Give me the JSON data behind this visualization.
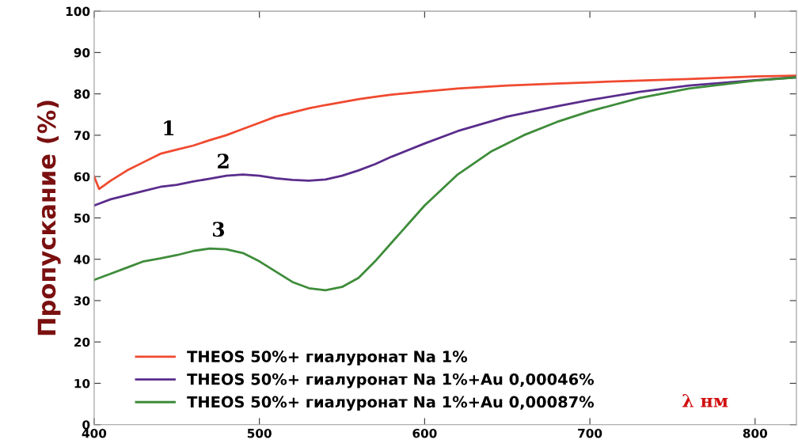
{
  "chart_data": {
    "type": "line",
    "xlabel": "λ нм",
    "ylabel": "Пропускание (%)",
    "xlim": [
      400,
      825
    ],
    "ylim": [
      0,
      100
    ],
    "xticks": [
      400,
      500,
      600,
      700,
      800
    ],
    "yticks": [
      0,
      10,
      20,
      30,
      40,
      50,
      60,
      70,
      80,
      90,
      100
    ],
    "grid": false,
    "legend": "bottom left",
    "marker": "none",
    "line_style": "solid",
    "annotations": [
      "1",
      "2",
      "3"
    ],
    "series": [
      {
        "name": "THEOS 50%+ гиалуронат Na 1%",
        "color": "#f04a30",
        "x": [
          400,
          403,
          410,
          420,
          430,
          440,
          450,
          460,
          470,
          480,
          490,
          500,
          510,
          520,
          530,
          540,
          550,
          560,
          570,
          580,
          600,
          620,
          650,
          680,
          700,
          730,
          760,
          800,
          825
        ],
        "values": [
          60,
          57,
          59,
          61.5,
          63.5,
          65.5,
          66.5,
          67.5,
          68.8,
          70,
          71.5,
          73,
          74.5,
          75.5,
          76.5,
          77.3,
          78,
          78.7,
          79.3,
          79.8,
          80.6,
          81.3,
          82,
          82.5,
          82.8,
          83.2,
          83.6,
          84.2,
          84.4
        ]
      },
      {
        "name": "THEOS 50%+ гиалуронат Na 1%+Au 0,00046%",
        "color": "#5a2d8c",
        "x": [
          400,
          410,
          420,
          430,
          440,
          450,
          460,
          470,
          480,
          490,
          500,
          510,
          520,
          530,
          540,
          550,
          560,
          570,
          580,
          600,
          620,
          650,
          680,
          700,
          730,
          760,
          800,
          825
        ],
        "values": [
          53,
          54.5,
          55.5,
          56.5,
          57.5,
          58,
          58.8,
          59.5,
          60.2,
          60.5,
          60.2,
          59.6,
          59.2,
          59,
          59.3,
          60.2,
          61.5,
          63,
          64.8,
          68,
          71,
          74.5,
          77,
          78.5,
          80.5,
          82,
          83.3,
          84
        ]
      },
      {
        "name": "THEOS 50%+ гиалуронат Na 1%+Au 0,00087%",
        "color": "#3e8c3a",
        "x": [
          400,
          410,
          420,
          430,
          440,
          450,
          460,
          470,
          480,
          490,
          500,
          510,
          520,
          530,
          540,
          550,
          560,
          570,
          580,
          590,
          600,
          620,
          640,
          660,
          680,
          700,
          730,
          760,
          800,
          825
        ],
        "values": [
          35,
          36.5,
          38,
          39.5,
          40.2,
          41,
          42,
          42.6,
          42.4,
          41.5,
          39.5,
          37,
          34.5,
          33,
          32.5,
          33.3,
          35.5,
          39.5,
          44,
          48.5,
          53,
          60.5,
          66,
          70,
          73.2,
          75.8,
          79,
          81.3,
          83.2,
          84
        ]
      }
    ]
  }
}
